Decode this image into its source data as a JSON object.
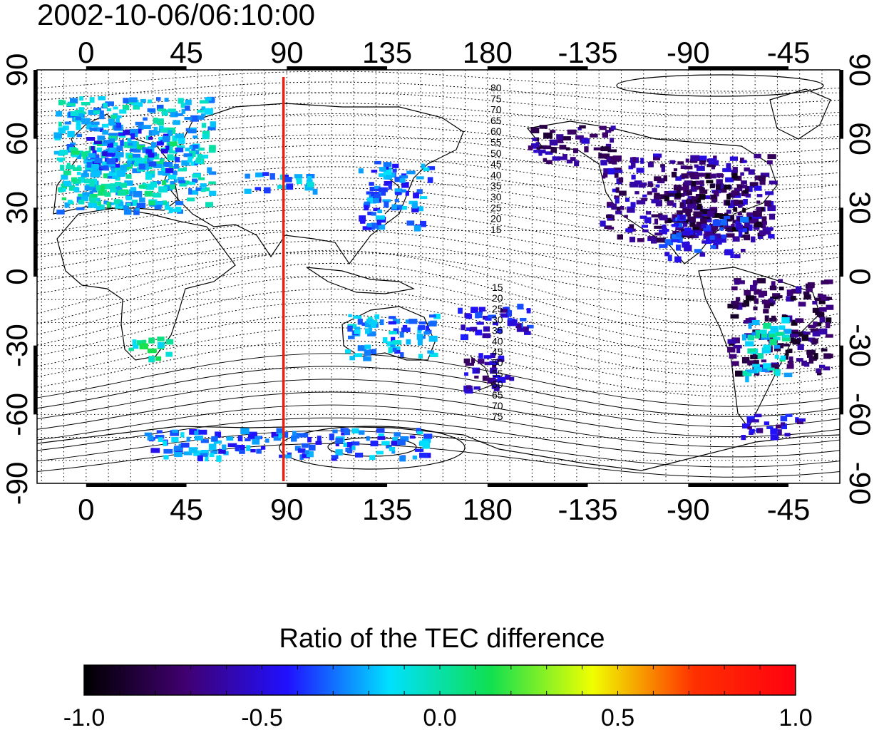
{
  "title": "2002-10-06/06:10:00",
  "map": {
    "lon_ticks_top": [
      "0",
      "45",
      "90",
      "135",
      "180",
      "-135",
      "-90",
      "-45"
    ],
    "lon_ticks_bottom": [
      "0",
      "45",
      "90",
      "135",
      "180",
      "-135",
      "-90",
      "-45"
    ],
    "lat_ticks": [
      "90",
      "60",
      "30",
      "0",
      "-30",
      "-60",
      "-90"
    ],
    "lon_values": [
      0,
      45,
      90,
      135,
      180,
      225,
      270,
      315
    ],
    "lat_values": [
      90,
      60,
      30,
      0,
      -30,
      -60,
      -90
    ],
    "marker_longitude": 88.5,
    "marker_color": "#e8200f",
    "north_contour_labels": [
      "80",
      "75",
      "70",
      "65",
      "60",
      "55",
      "50",
      "45",
      "40",
      "35",
      "30",
      "25",
      "20",
      "15"
    ],
    "south_contour_labels": [
      "15",
      "20",
      "25",
      "30",
      "35",
      "40",
      "45",
      "50",
      "55",
      "60",
      "65",
      "70",
      "75"
    ]
  },
  "colorbar": {
    "title": "Ratio of the TEC difference",
    "ticks": [
      "-1.0",
      "-0.5",
      "0.0",
      "0.5",
      "1.0"
    ],
    "min": -1.0,
    "max": 1.0,
    "stops": [
      "#000000",
      "#400070",
      "#2010ff",
      "#00e0ff",
      "#10e050",
      "#f0ff00",
      "#ff3000",
      "#ff0010"
    ]
  },
  "tec_ratio_regions": [
    {
      "region": "Europe",
      "value": -0.1
    },
    {
      "region": "North America",
      "value": -0.6
    },
    {
      "region": "Japan / East Asia",
      "value": -0.3
    },
    {
      "region": "Australia",
      "value": -0.25
    },
    {
      "region": "New Zealand",
      "value": -0.55
    },
    {
      "region": "South America",
      "value": -0.7
    },
    {
      "region": "Antarctica",
      "value": -0.35
    },
    {
      "region": "Southern Africa",
      "value": 0.0
    }
  ]
}
